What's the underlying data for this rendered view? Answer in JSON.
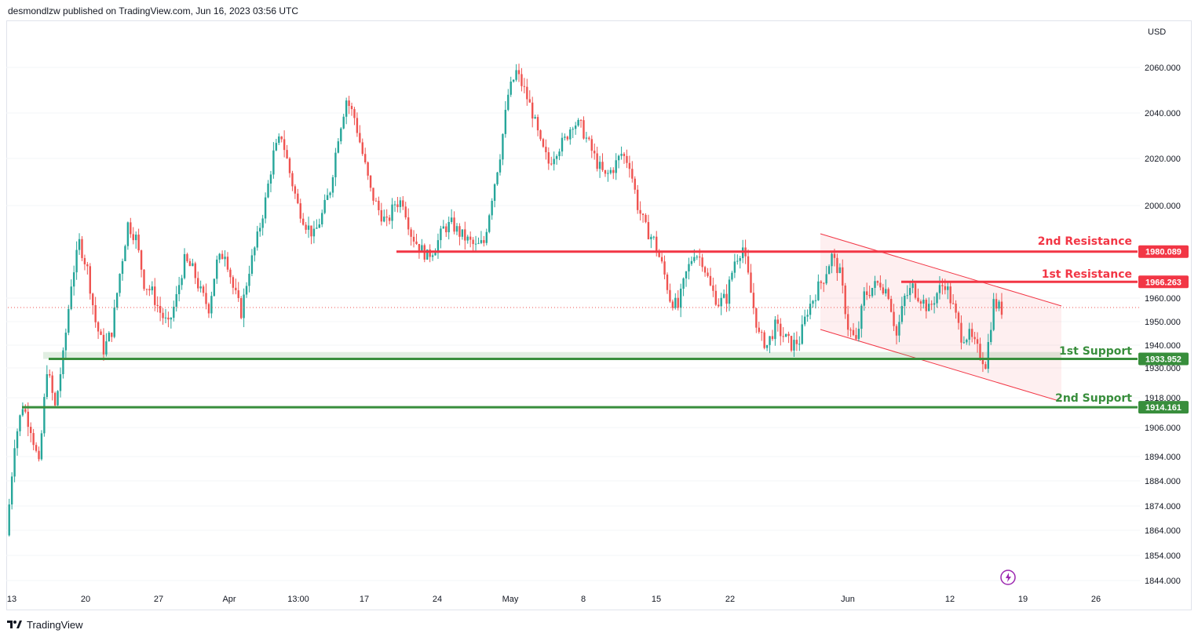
{
  "header": {
    "text": "desmondlzw published on TradingView.com, Jun 16, 2023 03:56 UTC"
  },
  "footer": {
    "brand": "TradingView"
  },
  "chart_data": {
    "type": "candlestick",
    "currency": "USD",
    "ylim": [
      1838,
      2072
    ],
    "y_ticks": [
      2060,
      2040,
      2020,
      2000,
      1960,
      1950,
      1940,
      1930,
      1918,
      1906,
      1894,
      1884,
      1874,
      1864,
      1854,
      1844
    ],
    "x_ticks": [
      "13",
      "20",
      "27",
      "Apr",
      "13:00",
      "17",
      "24",
      "May",
      "8",
      "15",
      "22",
      "Jun",
      "12",
      "19",
      "26"
    ],
    "colors": {
      "up": "#26a69a",
      "down": "#ef5350",
      "resistance": "#f23645",
      "support": "#388e3c"
    },
    "levels": [
      {
        "name": "2nd Resistance",
        "value": 1980.089,
        "label": "1980.089",
        "kind": "resistance"
      },
      {
        "name": "1st Resistance",
        "value": 1966.263,
        "label": "1966.263",
        "kind": "resistance"
      },
      {
        "name": "1st Support",
        "value": 1933.952,
        "label": "1933.952",
        "kind": "support"
      },
      {
        "name": "2nd Support",
        "value": 1914.161,
        "label": "1914.161",
        "kind": "support"
      }
    ],
    "last_price": 1956,
    "path": [
      1862,
      1900,
      1915,
      1906,
      1890,
      1930,
      1914,
      1935,
      1966,
      1984,
      1972,
      1950,
      1938,
      1946,
      1970,
      1992,
      1986,
      1966,
      1962,
      1954,
      1948,
      1960,
      1976,
      1972,
      1962,
      1956,
      1975,
      1980,
      1964,
      1954,
      1972,
      1986,
      2002,
      2022,
      2030,
      2014,
      2000,
      1992,
      1987,
      1996,
      2007,
      2030,
      2046,
      2038,
      2022,
      2006,
      1998,
      1992,
      2001,
      2002,
      1988,
      1982,
      1978,
      1982,
      1990,
      1992,
      1988,
      1985,
      1982,
      1984,
      2004,
      2022,
      2048,
      2058,
      2050,
      2040,
      2026,
      2018,
      2024,
      2028,
      2036,
      2034,
      2026,
      2018,
      2012,
      2016,
      2022,
      2018,
      2000,
      1990,
      1985,
      1974,
      1960,
      1956,
      1970,
      1980,
      1976,
      1964,
      1958,
      1960,
      1976,
      1982,
      1962,
      1944,
      1940,
      1948,
      1944,
      1940,
      1942,
      1955,
      1962,
      1968,
      1978,
      1970,
      1948,
      1941,
      1961,
      1964,
      1966,
      1962,
      1944,
      1960,
      1964,
      1960,
      1955,
      1962,
      1966,
      1956,
      1944,
      1944,
      1938,
      1932,
      1958,
      1955
    ]
  }
}
